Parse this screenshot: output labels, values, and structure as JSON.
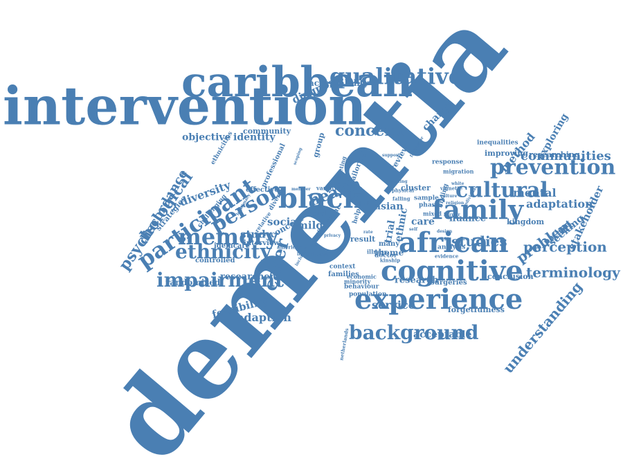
{
  "cloud": {
    "color": "#4a7fb3",
    "words": [
      {
        "text": "dementia"
      },
      {
        "text": "intervention"
      },
      {
        "text": "caribbean"
      },
      {
        "text": "african"
      },
      {
        "text": "cognitive"
      },
      {
        "text": "experience"
      },
      {
        "text": "family"
      },
      {
        "text": "prevention"
      },
      {
        "text": "qualitative"
      },
      {
        "text": "participant"
      },
      {
        "text": "black"
      },
      {
        "text": "memory"
      },
      {
        "text": "ethnicity"
      },
      {
        "text": "impairment"
      },
      {
        "text": "background"
      },
      {
        "text": "cultural"
      },
      {
        "text": "person"
      },
      {
        "text": "carer"
      },
      {
        "text": "psychological"
      },
      {
        "text": "concern"
      },
      {
        "text": "understanding"
      },
      {
        "text": "terminology"
      },
      {
        "text": "communities"
      },
      {
        "text": "problem"
      },
      {
        "text": "perception"
      },
      {
        "text": "health"
      },
      {
        "text": "studies"
      },
      {
        "text": "discordance"
      },
      {
        "text": "diversity"
      },
      {
        "text": "adaptation"
      },
      {
        "text": "mental"
      },
      {
        "text": "feasibility"
      },
      {
        "text": "diagnosis"
      },
      {
        "text": "stakeholder"
      },
      {
        "text": "adaption"
      },
      {
        "text": "acceptable"
      },
      {
        "text": "service"
      },
      {
        "text": "acceptability"
      },
      {
        "text": "objective"
      },
      {
        "text": "identity"
      },
      {
        "text": "community"
      },
      {
        "text": "method"
      },
      {
        "text": "exploring"
      },
      {
        "text": "seeking"
      },
      {
        "text": "social"
      },
      {
        "text": "study"
      },
      {
        "text": "mild"
      },
      {
        "text": "strategies"
      },
      {
        "text": "randomised"
      },
      {
        "text": "researcher"
      },
      {
        "text": "change"
      },
      {
        "text": "research"
      },
      {
        "text": "conclusion"
      },
      {
        "text": "forgetfulness"
      },
      {
        "text": "kingdom"
      },
      {
        "text": "nuance"
      },
      {
        "text": "patient"
      },
      {
        "text": "theme"
      },
      {
        "text": "asian"
      },
      {
        "text": "care"
      },
      {
        "text": "trial"
      },
      {
        "text": "ethnic"
      },
      {
        "text": "effective"
      },
      {
        "text": "group"
      },
      {
        "text": "review"
      },
      {
        "text": "professional"
      },
      {
        "text": "challenging"
      },
      {
        "text": "ethnicities"
      },
      {
        "text": "idemcare"
      },
      {
        "text": "interview"
      },
      {
        "text": "controlled"
      },
      {
        "text": "racial"
      },
      {
        "text": "concept"
      },
      {
        "text": "result"
      },
      {
        "text": "many"
      },
      {
        "text": "doctor"
      },
      {
        "text": "families"
      },
      {
        "text": "context"
      },
      {
        "text": "population"
      },
      {
        "text": "behaviour"
      },
      {
        "text": "minority"
      },
      {
        "text": "economic"
      },
      {
        "text": "surgeries"
      },
      {
        "text": "cluster"
      },
      {
        "text": "sample"
      },
      {
        "text": "phase"
      },
      {
        "text": "mixed"
      },
      {
        "text": "finding"
      },
      {
        "text": "analysis"
      },
      {
        "text": "response"
      },
      {
        "text": "migration"
      },
      {
        "text": "inequalities"
      },
      {
        "text": "improving"
      },
      {
        "text": "researching"
      },
      {
        "text": "american"
      },
      {
        "text": "legitimacy"
      },
      {
        "text": "relative"
      },
      {
        "text": "diverse"
      },
      {
        "text": "current"
      },
      {
        "text": "variation"
      },
      {
        "text": "meeting"
      },
      {
        "text": "tailoring"
      },
      {
        "text": "adult"
      },
      {
        "text": "help"
      },
      {
        "text": "issue"
      },
      {
        "text": "crack"
      },
      {
        "text": "illness"
      },
      {
        "text": "netherlands"
      },
      {
        "text": "evidence"
      },
      {
        "text": "vignette"
      },
      {
        "text": "facilitator"
      },
      {
        "text": "physical"
      },
      {
        "text": "falling"
      },
      {
        "text": "individual"
      },
      {
        "text": "barrier"
      },
      {
        "text": "kinship"
      },
      {
        "text": "member"
      },
      {
        "text": "privacy"
      },
      {
        "text": "limited"
      },
      {
        "text": "culture"
      },
      {
        "text": "religion"
      },
      {
        "text": "inclusion"
      },
      {
        "text": "scoping"
      },
      {
        "text": "support"
      },
      {
        "text": "setting"
      },
      {
        "text": "design"
      },
      {
        "text": "age"
      },
      {
        "text": "rate"
      },
      {
        "text": "self"
      },
      {
        "text": "white"
      }
    ]
  }
}
